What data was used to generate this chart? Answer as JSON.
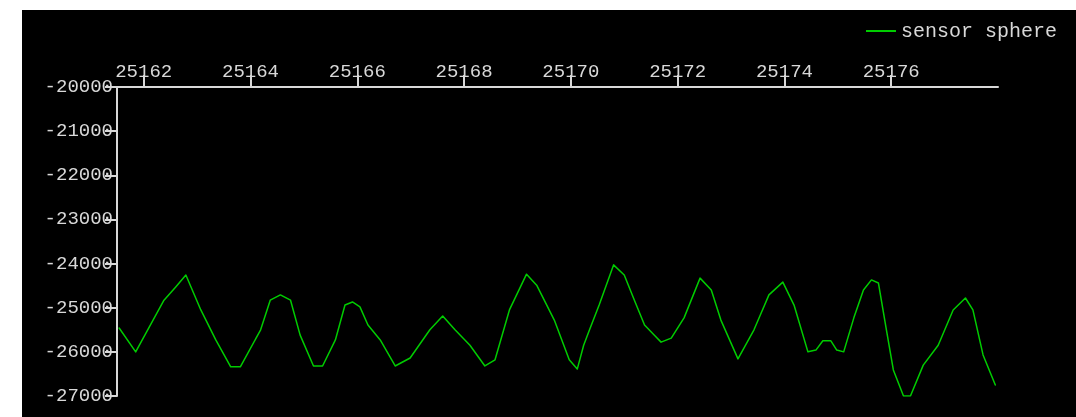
{
  "chart_data": {
    "type": "line",
    "xlim": [
      25161.5,
      25178
    ],
    "xticks": [
      25162,
      25164,
      25166,
      25168,
      25170,
      25172,
      25174,
      25176
    ],
    "ylim": [
      -27000,
      -20000
    ],
    "yticks": [
      -20000,
      -21000,
      -22000,
      -23000,
      -24000,
      -25000,
      -26000,
      -27000
    ],
    "grid": false,
    "legend": "top right",
    "marker": "none",
    "line_style": "solid",
    "series": [
      {
        "name": "sensor sphere",
        "color": "#00cc00",
        "x": [
          25161.54,
          25161.85,
          25162.38,
          25162.6,
          25162.79,
          25163.07,
          25163.35,
          25163.63,
          25163.81,
          25164.19,
          25164.37,
          25164.56,
          25164.75,
          25164.93,
          25165.18,
          25165.35,
          25165.59,
          25165.77,
          25165.91,
          25166.05,
          25166.2,
          25166.43,
          25166.71,
          25166.99,
          25167.36,
          25167.6,
          25167.83,
          25168.11,
          25168.39,
          25168.58,
          25168.85,
          25169.17,
          25169.36,
          25169.69,
          25169.97,
          25170.12,
          25170.24,
          25170.35,
          25170.53,
          25170.8,
          25171.0,
          25171.19,
          25171.38,
          25171.56,
          25171.69,
          25171.88,
          25172.12,
          25172.42,
          25172.63,
          25172.81,
          25173.13,
          25173.43,
          25173.71,
          25173.97,
          25174.18,
          25174.44,
          25174.59,
          25174.72,
          25174.87,
          25174.98,
          25175.11,
          25175.3,
          25175.48,
          25175.63,
          25175.76,
          25175.91,
          25176.04,
          25176.23,
          25176.36,
          25176.6,
          25176.88,
          25177.16,
          25177.39,
          25177.53,
          25177.72,
          25177.95
        ],
        "values": [
          -25460,
          -26000,
          -24830,
          -24530,
          -24260,
          -25050,
          -25730,
          -26340,
          -26340,
          -25500,
          -24830,
          -24710,
          -24830,
          -25620,
          -26320,
          -26320,
          -25730,
          -24940,
          -24870,
          -24980,
          -25390,
          -25730,
          -26320,
          -26140,
          -25500,
          -25190,
          -25500,
          -25850,
          -26320,
          -26180,
          -25050,
          -24240,
          -24490,
          -25280,
          -26180,
          -26390,
          -25850,
          -25500,
          -24940,
          -24030,
          -24260,
          -24830,
          -25390,
          -25620,
          -25780,
          -25690,
          -25230,
          -24330,
          -24600,
          -25280,
          -26160,
          -25500,
          -24710,
          -24420,
          -24940,
          -26000,
          -25960,
          -25750,
          -25750,
          -25960,
          -26000,
          -25230,
          -24600,
          -24370,
          -24440,
          -25500,
          -26410,
          -27000,
          -27000,
          -26300,
          -25850,
          -25050,
          -24780,
          -25050,
          -26070,
          -26750
        ]
      }
    ]
  }
}
